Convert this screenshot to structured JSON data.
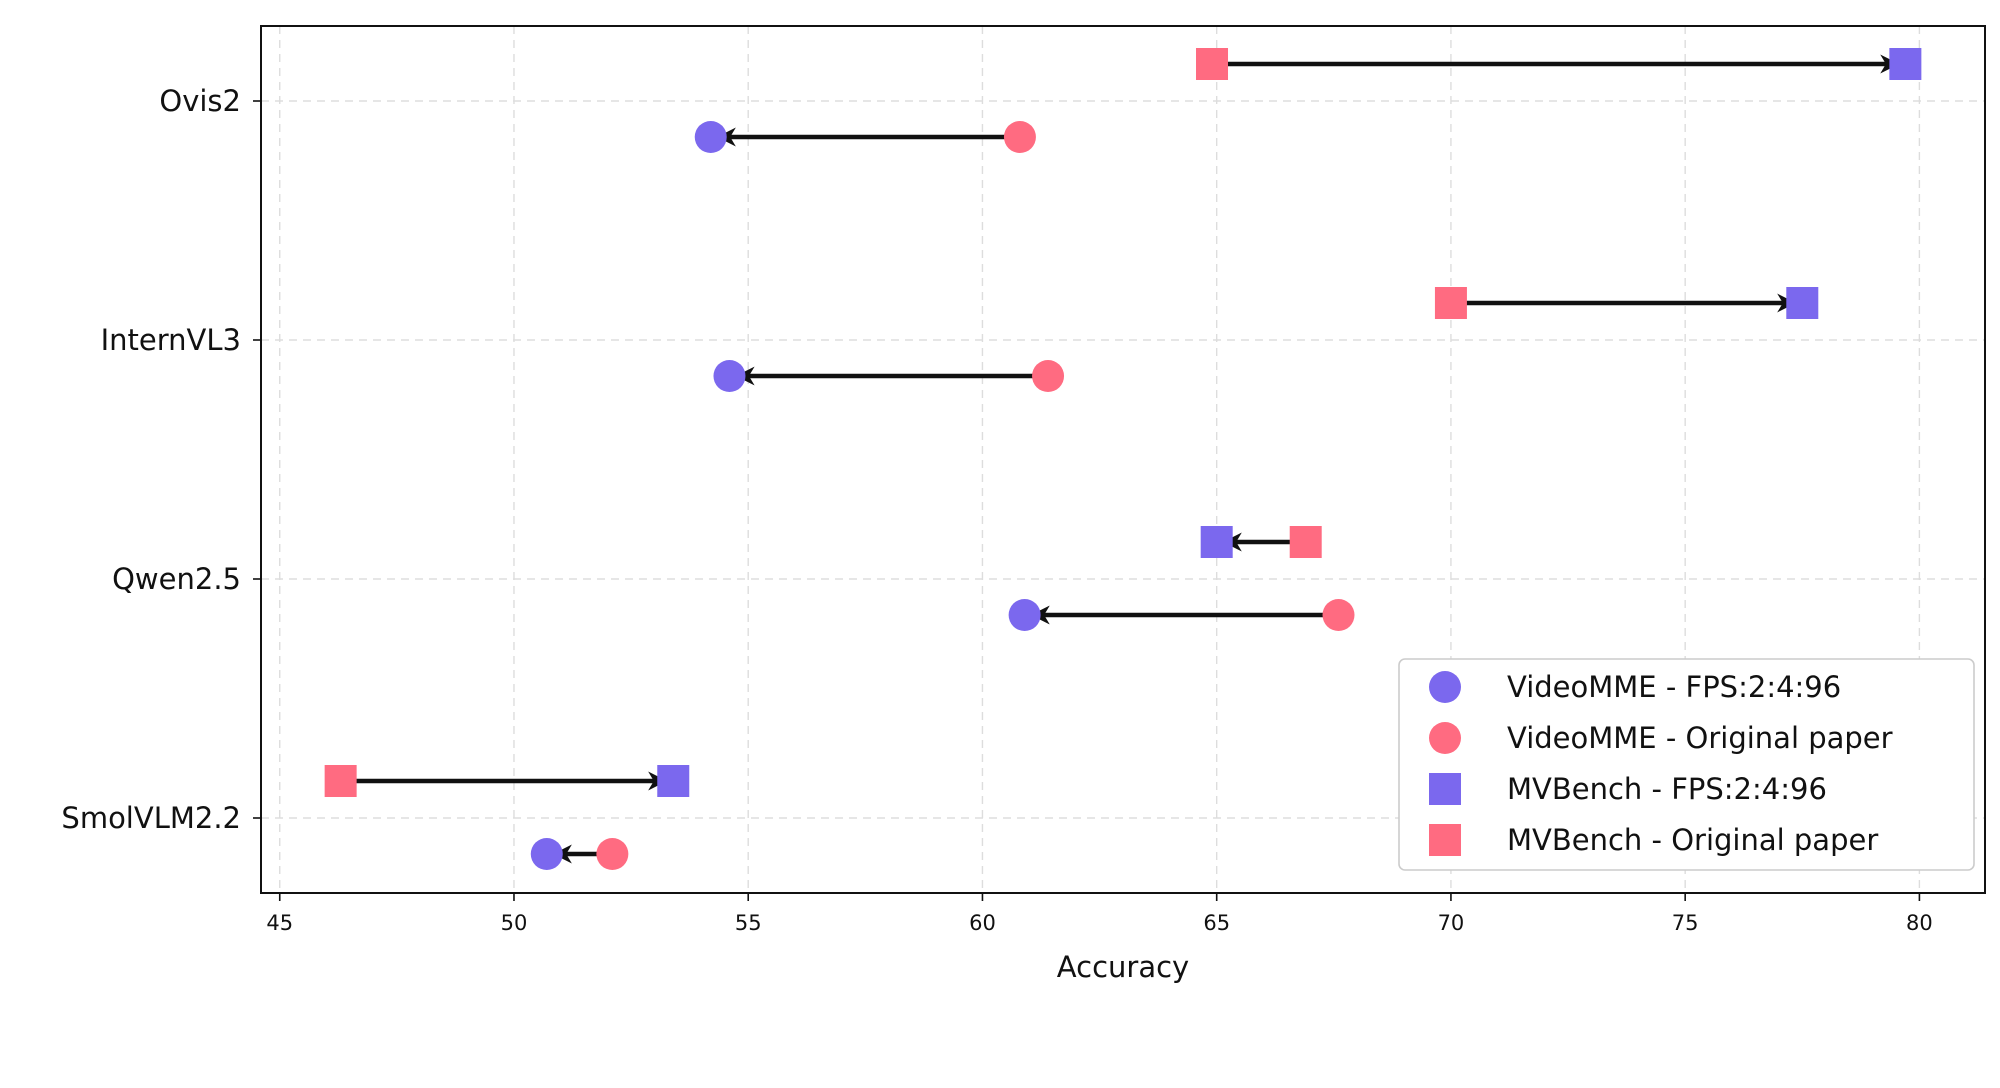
{
  "chart_data": {
    "type": "scatter",
    "xlabel": "Accuracy",
    "ylabel": "",
    "xlim": [
      44.6,
      81.4
    ],
    "xticks": [
      45,
      50,
      55,
      60,
      65,
      70,
      75,
      80
    ],
    "categories": [
      "Ovis2",
      "InternVL3",
      "Qwen2.5",
      "SmolVLM2.2"
    ],
    "grid": true,
    "legend_position": "lower-right",
    "colors": {
      "fps": "#7b68ee",
      "original": "#ff6b81",
      "arrow": "#111111"
    },
    "series": [
      {
        "name": "VideoMME - FPS:2:4:96",
        "benchmark": "VideoMME",
        "variant": "fps",
        "marker": "circle",
        "values": [
          54.2,
          54.6,
          60.9,
          50.7
        ]
      },
      {
        "name": "VideoMME - Original paper",
        "benchmark": "VideoMME",
        "variant": "original",
        "marker": "circle",
        "values": [
          60.8,
          61.4,
          67.6,
          52.1
        ]
      },
      {
        "name": "MVBench - FPS:2:4:96",
        "benchmark": "MVBench",
        "variant": "fps",
        "marker": "square",
        "values": [
          79.7,
          77.5,
          65.0,
          53.4
        ]
      },
      {
        "name": "MVBench - Original paper",
        "benchmark": "MVBench",
        "variant": "original",
        "marker": "square",
        "values": [
          64.9,
          70.0,
          66.9,
          46.3
        ]
      }
    ]
  }
}
